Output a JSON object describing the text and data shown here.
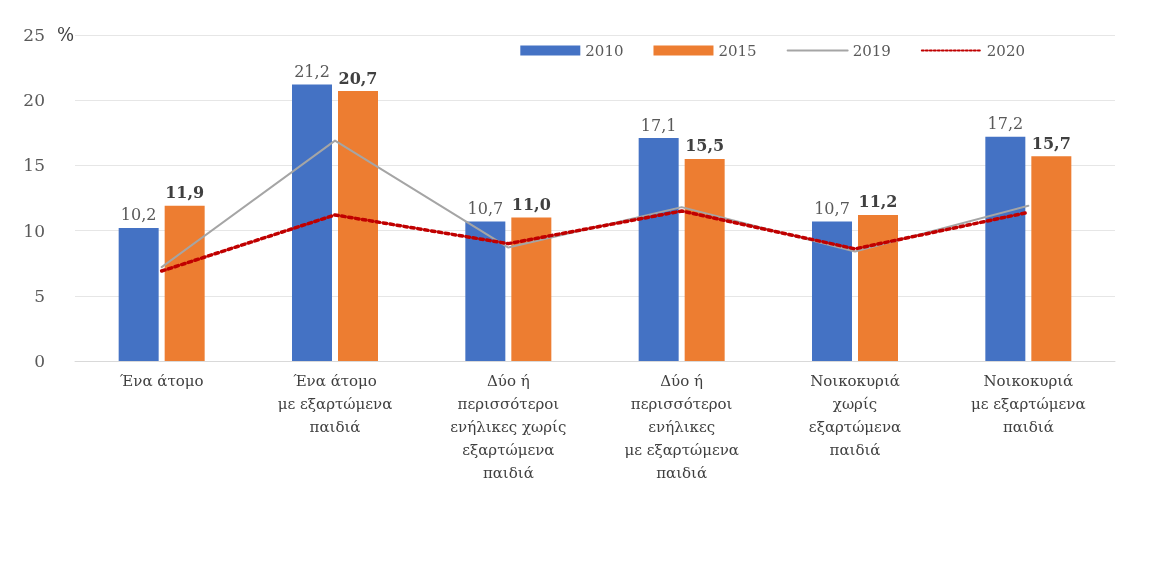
{
  "chart_data": {
    "type": "bar",
    "ylabel": "%",
    "categories": [
      "Ένα άτομο",
      "Ένα άτομο\nμε εξαρτώμενα\nπαιδιά",
      "Δύο ή\nπερισσότεροι\nενήλικες χωρίς\nεξαρτώμενα\nπαιδιά",
      "Δύο ή\nπερισσότεροι\nενήλικες\nμε εξαρτώμενα\nπαιδιά",
      "Νοικοκυριά\nχωρίς\nεξαρτώμενα\nπαιδιά",
      "Νοικοκυριά\nμε εξαρτώμενα\nπαιδιά"
    ],
    "series": [
      {
        "name": "2010",
        "color": "#4472c4",
        "values": [
          10.2,
          21.2,
          10.7,
          17.1,
          10.7,
          17.2
        ],
        "value_labels": [
          "10,2",
          "21,2",
          "10,7",
          "17,1",
          "10,7",
          "17,2"
        ]
      },
      {
        "name": "2015",
        "color": "#ed7d31",
        "values": [
          11.9,
          20.7,
          11.0,
          15.5,
          11.2,
          15.7
        ],
        "value_labels": [
          "11,9",
          "20,7",
          "11,0",
          "15,5",
          "11,2",
          "15,7"
        ]
      },
      {
        "name": "2019",
        "type": "line",
        "color": "#a5a5a5",
        "line_style": "solid",
        "values": [
          7.2,
          16.9,
          8.7,
          11.8,
          8.4,
          11.9
        ]
      },
      {
        "name": "2020",
        "type": "line",
        "color": "#c00000",
        "line_style": "dotted",
        "values": [
          6.9,
          11.2,
          9.0,
          11.5,
          8.6,
          11.4
        ]
      }
    ],
    "ylim": [
      0,
      25
    ],
    "yticks": [
      0,
      5,
      10,
      15,
      20,
      25
    ],
    "grid": "y",
    "legend": "top right",
    "marker": "none"
  }
}
